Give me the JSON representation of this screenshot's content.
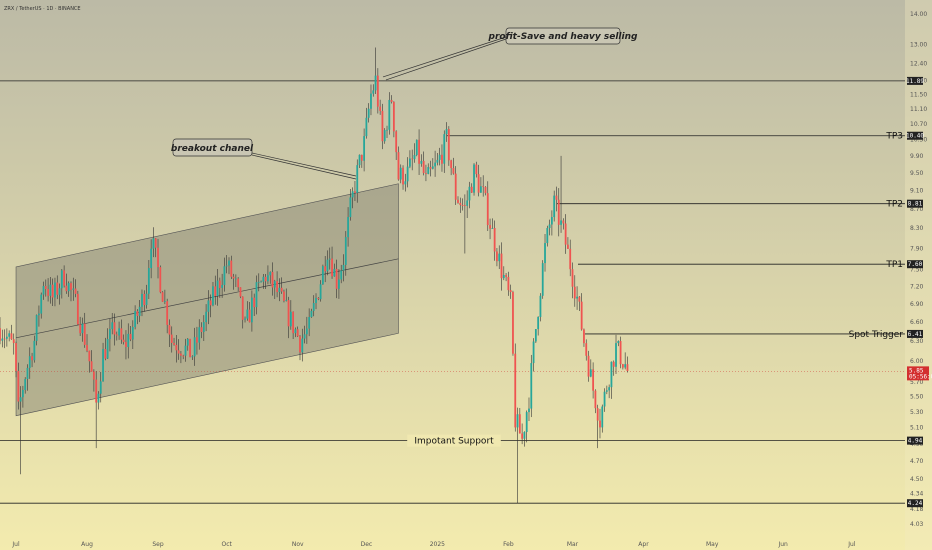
{
  "symbol": "ZRX / TetherUS · 1D · BINANCE",
  "colors": {
    "bg_top": "#bcbaa6",
    "bg_bottom": "#f3ebae",
    "up": "#26a69a",
    "down": "#ef5350",
    "line": "#222222",
    "tag_bg": "#222222",
    "last_bg": "#d32f2f"
  },
  "price_axis": [
    "14.00",
    "13.00",
    "12.40",
    "11.90",
    "11.50",
    "11.10",
    "10.70",
    "10.30",
    "9.90",
    "9.50",
    "9.10",
    "8.70",
    "8.30",
    "7.90",
    "7.50",
    "7.20",
    "6.90",
    "6.60",
    "6.30",
    "6.00",
    "5.70",
    "5.50",
    "5.30",
    "5.10",
    "4.90",
    "4.70",
    "4.50",
    "4.34",
    "4.18",
    "4.03"
  ],
  "time_axis": [
    "Jul",
    "Aug",
    "Sep",
    "Oct",
    "Nov",
    "Dec",
    "2025",
    "Feb",
    "Mar",
    "Apr",
    "May",
    "Jun",
    "Jul"
  ],
  "levels": [
    {
      "label": "",
      "price": 11.89,
      "tag": "11.89"
    },
    {
      "label": "TP3",
      "price": 10.4,
      "tag": "10.40"
    },
    {
      "label": "TP2",
      "price": 8.81,
      "tag": "8.81"
    },
    {
      "label": "TP1",
      "price": 7.6,
      "tag": "7.60"
    },
    {
      "label": "Spot Trigger",
      "price": 6.41,
      "tag": "6.41"
    },
    {
      "label": "Impotant Support",
      "price": 4.94,
      "tag": "4.94"
    },
    {
      "label": "",
      "price": 4.24,
      "tag": "4.24"
    }
  ],
  "last_price": {
    "value": "5.85",
    "countdown": "05:56:04"
  },
  "annotations": {
    "top": "profit-Save and heavy selling",
    "channel": "breakout chanel"
  },
  "chart_data": {
    "type": "candlestick",
    "title": "ZRX / TetherUS · 1D · BINANCE",
    "ylim": [
      4.0,
      14.0
    ],
    "x_range": [
      "2024-06-24",
      "2025-07-14"
    ],
    "scale": "log",
    "grid": false,
    "channel": {
      "lower": [
        [
          "2024-07-01",
          5.25
        ],
        [
          "2024-12-15",
          6.42
        ]
      ],
      "upper": [
        [
          "2024-07-01",
          7.55
        ],
        [
          "2024-12-15",
          9.25
        ]
      ],
      "mid": [
        [
          "2024-07-01",
          6.35
        ],
        [
          "2024-12-15",
          7.7
        ]
      ]
    },
    "path": [
      [
        "2024-06-24",
        6.5
      ],
      [
        "2024-06-30",
        6.2
      ],
      [
        "2024-07-02",
        5.3
      ],
      [
        "2024-07-05",
        5.8
      ],
      [
        "2024-07-09",
        6.3
      ],
      [
        "2024-07-13",
        7.3
      ],
      [
        "2024-07-17",
        7.0
      ],
      [
        "2024-07-22",
        7.4
      ],
      [
        "2024-07-27",
        6.9
      ],
      [
        "2024-08-01",
        6.2
      ],
      [
        "2024-08-05",
        5.4
      ],
      [
        "2024-08-08",
        6.1
      ],
      [
        "2024-08-13",
        6.5
      ],
      [
        "2024-08-17",
        6.2
      ],
      [
        "2024-08-22",
        6.6
      ],
      [
        "2024-08-27",
        7.2
      ],
      [
        "2024-08-29",
        8.1
      ],
      [
        "2024-09-03",
        7.1
      ],
      [
        "2024-09-07",
        6.3
      ],
      [
        "2024-09-12",
        6.2
      ],
      [
        "2024-09-16",
        6.1
      ],
      [
        "2024-09-21",
        6.6
      ],
      [
        "2024-09-26",
        7.1
      ],
      [
        "2024-10-01",
        7.6
      ],
      [
        "2024-10-05",
        7.2
      ],
      [
        "2024-10-09",
        6.5
      ],
      [
        "2024-10-13",
        7.0
      ],
      [
        "2024-10-18",
        7.4
      ],
      [
        "2024-10-23",
        7.1
      ],
      [
        "2024-10-28",
        6.7
      ],
      [
        "2024-11-02",
        6.3
      ],
      [
        "2024-11-06",
        6.5
      ],
      [
        "2024-11-11",
        7.3
      ],
      [
        "2024-11-14",
        7.9
      ],
      [
        "2024-11-18",
        7.3
      ],
      [
        "2024-11-21",
        7.7
      ],
      [
        "2024-11-24",
        8.7
      ],
      [
        "2024-11-27",
        9.5
      ],
      [
        "2024-11-30",
        10.2
      ],
      [
        "2024-12-03",
        11.5
      ],
      [
        "2024-12-05",
        11.9
      ],
      [
        "2024-12-08",
        10.2
      ],
      [
        "2024-12-12",
        11.4
      ],
      [
        "2024-12-15",
        9.4
      ],
      [
        "2024-12-19",
        9.5
      ],
      [
        "2024-12-23",
        10.0
      ],
      [
        "2024-12-27",
        9.3
      ],
      [
        "2025-01-01",
        9.7
      ],
      [
        "2025-01-05",
        10.3
      ],
      [
        "2025-01-09",
        9.0
      ],
      [
        "2025-01-13",
        8.7
      ],
      [
        "2025-01-17",
        9.5
      ],
      [
        "2025-01-21",
        9.0
      ],
      [
        "2025-01-25",
        8.2
      ],
      [
        "2025-01-29",
        7.5
      ],
      [
        "2025-02-02",
        6.9
      ],
      [
        "2025-02-04",
        5.2
      ],
      [
        "2025-02-07",
        4.95
      ],
      [
        "2025-02-10",
        5.5
      ],
      [
        "2025-02-13",
        6.5
      ],
      [
        "2025-02-17",
        7.9
      ],
      [
        "2025-02-21",
        8.8
      ],
      [
        "2025-02-25",
        8.2
      ],
      [
        "2025-02-28",
        7.6
      ],
      [
        "2025-03-03",
        7.0
      ],
      [
        "2025-03-06",
        6.3
      ],
      [
        "2025-03-10",
        5.6
      ],
      [
        "2025-03-13",
        5.2
      ],
      [
        "2025-03-17",
        5.8
      ],
      [
        "2025-03-20",
        6.2
      ],
      [
        "2025-03-24",
        5.95
      ],
      [
        "2025-03-25",
        5.85
      ]
    ]
  }
}
